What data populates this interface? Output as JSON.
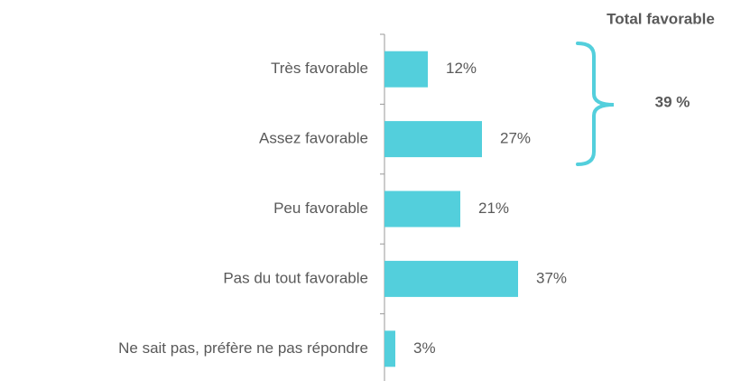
{
  "chart_data": {
    "type": "bar",
    "orientation": "horizontal",
    "categories": [
      "Très favorable",
      "Assez favorable",
      "Peu favorable",
      "Pas du tout favorable",
      "Ne sait pas, préfère ne pas répondre"
    ],
    "values": [
      12,
      27,
      21,
      37,
      3
    ],
    "value_labels": [
      "12%",
      "27%",
      "21%",
      "37%",
      "3%"
    ],
    "color": "#53cfdc",
    "xlim": [
      0,
      100
    ],
    "total_favorable": {
      "title": "Total favorable",
      "value": 39,
      "value_label": "39 %"
    }
  }
}
